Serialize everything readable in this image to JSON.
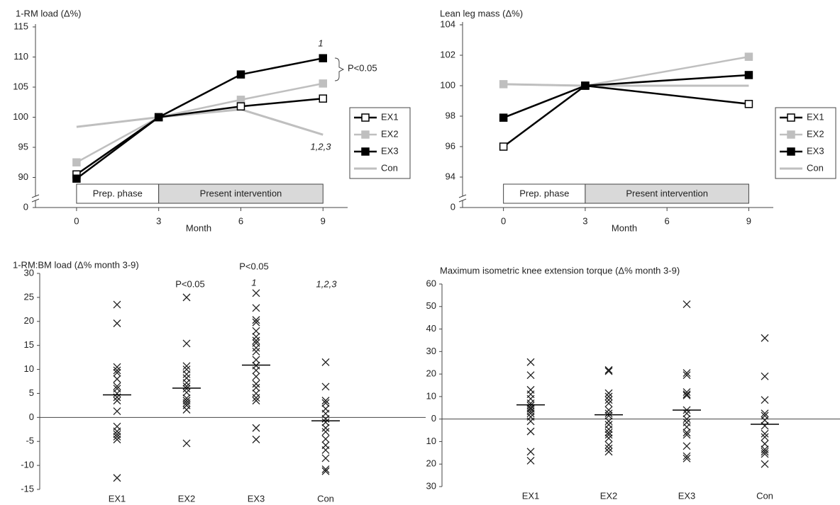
{
  "chart_data": [
    {
      "type": "line",
      "title": "1-RM load (Δ%)",
      "xlabel": "Month",
      "x": [
        0,
        3,
        6,
        9
      ],
      "xlim": [
        -1.5,
        9.9
      ],
      "xticks": [
        0,
        3,
        6,
        9
      ],
      "ylim": [
        0,
        115
      ],
      "ybreak": [
        0,
        85
      ],
      "yticks": [
        0,
        90,
        95,
        100,
        105,
        110,
        115
      ],
      "phases": [
        {
          "label": "Prep. phase",
          "x": [
            0,
            3
          ],
          "color": "#ffffff"
        },
        {
          "label": "Present intervention",
          "x": [
            3,
            9
          ],
          "color": "#d9d9d9"
        }
      ],
      "series": [
        {
          "name": "EX1",
          "color": "#000000",
          "marker": "open-square",
          "values": [
            90.5,
            100,
            101.8,
            103.1
          ]
        },
        {
          "name": "EX2",
          "color": "#bfbfbf",
          "marker": "square",
          "values": [
            92.5,
            100,
            102.9,
            105.6
          ]
        },
        {
          "name": "EX3",
          "color": "#000000",
          "marker": "square",
          "values": [
            89.8,
            100,
            107.1,
            109.8
          ]
        },
        {
          "name": "Con",
          "color": "#bfbfbf",
          "marker": "none",
          "values": [
            98.4,
            100,
            101.3,
            97.1
          ]
        }
      ],
      "annotations": [
        "1",
        "P<0.05",
        "1,2,3"
      ]
    },
    {
      "type": "line",
      "title": "Lean leg mass (Δ%)",
      "xlabel": "Month",
      "x": [
        0,
        3,
        9
      ],
      "xlim": [
        -1.5,
        9.9
      ],
      "xticks": [
        0,
        3,
        6,
        9
      ],
      "ylim": [
        0,
        104
      ],
      "ybreak": [
        0,
        92
      ],
      "yticks": [
        0,
        94,
        96,
        98,
        100,
        102,
        104
      ],
      "phases": [
        {
          "label": "Prep. phase",
          "x": [
            0,
            3
          ],
          "color": "#ffffff"
        },
        {
          "label": "Present intervention",
          "x": [
            3,
            9
          ],
          "color": "#d9d9d9"
        }
      ],
      "series": [
        {
          "name": "EX1",
          "color": "#000000",
          "marker": "open-square",
          "values": [
            96.0,
            100,
            98.8
          ]
        },
        {
          "name": "EX2",
          "color": "#bfbfbf",
          "marker": "square",
          "values": [
            100.1,
            100,
            101.9
          ]
        },
        {
          "name": "EX3",
          "color": "#000000",
          "marker": "square",
          "values": [
            97.9,
            100,
            100.7
          ]
        },
        {
          "name": "Con",
          "color": "#bfbfbf",
          "marker": "none",
          "values": [
            100.1,
            100,
            100.0
          ]
        }
      ],
      "annotations": []
    },
    {
      "type": "strip",
      "title": "1-RM:BM load (Δ% month 3-9)",
      "categories": [
        "EX1",
        "EX2",
        "EX3",
        "Con"
      ],
      "ylim": [
        -15,
        30
      ],
      "yticks": [
        -15,
        -10,
        -5,
        0,
        5,
        10,
        15,
        20,
        25,
        30
      ],
      "points": [
        [
          23.5,
          19.6,
          10.5,
          9.8,
          9.3,
          8.0,
          6.5,
          6.0,
          5.0,
          4.2,
          3.5,
          1.3,
          -1.9,
          -2.9,
          -3.5,
          -4.0,
          -4.6,
          -12.6
        ],
        [
          25.0,
          15.4,
          10.7,
          10.0,
          9.0,
          8.2,
          7.2,
          6.5,
          6.0,
          5.2,
          4.0,
          3.5,
          3.0,
          2.5,
          1.6,
          -5.4
        ],
        [
          25.9,
          22.8,
          20.3,
          19.8,
          18.0,
          16.8,
          16.0,
          15.5,
          14.5,
          13.7,
          12.0,
          10.8,
          9.8,
          8.5,
          7.0,
          6.2,
          5.0,
          4.1,
          3.5,
          -2.2,
          -4.6
        ],
        [
          11.5,
          6.4,
          3.5,
          3.0,
          1.8,
          0.8,
          -0.3,
          -1.0,
          -2.2,
          -3.0,
          -4.5,
          -5.8,
          -6.8,
          -8.5,
          -10.8,
          -11.2
        ]
      ],
      "means": [
        4.7,
        6.1,
        10.9,
        -0.7
      ],
      "annotations": [
        "P<0.05",
        "P<0.05",
        "1",
        "1,2,3"
      ]
    },
    {
      "type": "strip",
      "title": "Maximum isometric knee extension torque  (Δ% month 3-9)",
      "categories": [
        "EX1",
        "EX2",
        "EX3",
        "Con"
      ],
      "ylim": [
        -30,
        60
      ],
      "yticks": [
        {
          "value": -30,
          "label": "30"
        },
        {
          "value": -20,
          "label": "20"
        },
        {
          "value": -10,
          "label": "10"
        },
        0,
        10,
        20,
        30,
        40,
        50,
        60
      ],
      "points": [
        [
          25.3,
          19.5,
          13,
          11,
          9,
          7,
          6,
          5,
          4.5,
          3.5,
          2.5,
          1,
          -1,
          -5.5,
          -14.5,
          -18.5
        ],
        [
          21.8,
          21.3,
          11.5,
          10,
          8.5,
          7,
          4,
          2.5,
          1.5,
          -1,
          -2.5,
          -4.5,
          -6,
          -7,
          -8.5,
          -11.5,
          -13,
          -14.5
        ],
        [
          51,
          20.5,
          19.5,
          12,
          11,
          10.5,
          4,
          2.5,
          0,
          -1.5,
          -3.5,
          -6,
          -7,
          -12,
          -16.5,
          -17.5
        ],
        [
          36,
          19,
          8.5,
          2.5,
          1.5,
          -0.5,
          -3,
          -6.5,
          -8,
          -11,
          -13.5,
          -14.5,
          -15.5,
          -20
        ]
      ],
      "means": [
        6.3,
        1.9,
        4.0,
        -2.3
      ],
      "annotations": []
    }
  ]
}
